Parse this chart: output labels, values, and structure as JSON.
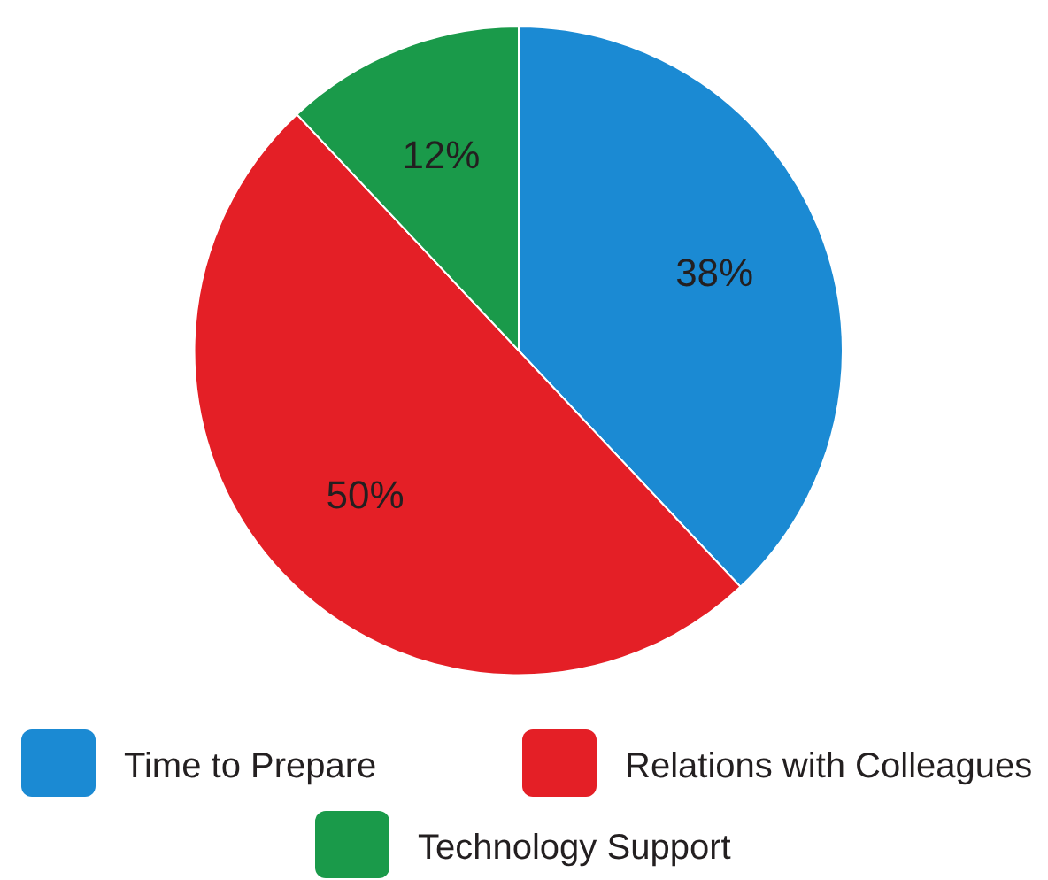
{
  "chart_data": {
    "type": "pie",
    "categories": [
      "Time to Prepare",
      "Relations with Colleagues",
      "Technology Support"
    ],
    "values": [
      38,
      50,
      12
    ],
    "colors": [
      "#1b8ad3",
      "#e41f26",
      "#1a9a4a"
    ],
    "value_labels": [
      "38%",
      "50%",
      "12%"
    ],
    "legend": "bottom"
  }
}
